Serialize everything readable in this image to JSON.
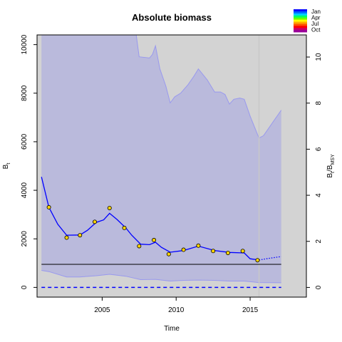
{
  "chart_data": {
    "type": "line",
    "title": "Absolute biomass",
    "xlabel": "Time",
    "ylabel_left": {
      "main": "B",
      "sub": "t"
    },
    "ylabel_right": {
      "main": "B",
      "sub": "t",
      "sep": "/B",
      "sub2": "MSY"
    },
    "xlim": [
      2000.6,
      2018.8
    ],
    "ylim_left": [
      -400,
      10400
    ],
    "ylim_right": [
      -0.42,
      10.96
    ],
    "x_ticks": [
      2005,
      2010,
      2015
    ],
    "y_ticks_left": [
      0,
      2000,
      4000,
      6000,
      8000,
      10000
    ],
    "y_ticks_right": [
      0,
      2,
      4,
      6,
      8,
      10
    ],
    "bmsy": 950,
    "vertical_line_x": 2015.6,
    "fit_end_x": 2015.6,
    "projection_end_x": 2017.1,
    "biomass_fit": [
      [
        2000.9,
        4550
      ],
      [
        2001.4,
        3300
      ],
      [
        2002.0,
        2600
      ],
      [
        2002.6,
        2150
      ],
      [
        2003.5,
        2160
      ],
      [
        2004.0,
        2350
      ],
      [
        2004.6,
        2680
      ],
      [
        2005.1,
        2780
      ],
      [
        2005.5,
        3050
      ],
      [
        2006.0,
        2800
      ],
      [
        2006.6,
        2450
      ],
      [
        2007.0,
        2150
      ],
      [
        2007.6,
        1780
      ],
      [
        2008.2,
        1760
      ],
      [
        2008.6,
        1860
      ],
      [
        2009.0,
        1650
      ],
      [
        2009.6,
        1450
      ],
      [
        2010.5,
        1520
      ],
      [
        2011.5,
        1700
      ],
      [
        2012.6,
        1520
      ],
      [
        2013.6,
        1440
      ],
      [
        2014.6,
        1420
      ],
      [
        2015.0,
        1180
      ],
      [
        2015.6,
        1130
      ]
    ],
    "biomass_projection": [
      [
        2015.6,
        1130
      ],
      [
        2016.3,
        1200
      ],
      [
        2017.1,
        1270
      ]
    ],
    "biomass_upper_ci": [
      [
        2000.9,
        10400
      ],
      [
        2007.3,
        10400
      ],
      [
        2007.5,
        9500
      ],
      [
        2008.2,
        9450
      ],
      [
        2008.4,
        9600
      ],
      [
        2008.6,
        9950
      ],
      [
        2008.9,
        9000
      ],
      [
        2009.3,
        8300
      ],
      [
        2009.6,
        7600
      ],
      [
        2009.9,
        7850
      ],
      [
        2010.3,
        8000
      ],
      [
        2010.8,
        8350
      ],
      [
        2011.2,
        8700
      ],
      [
        2011.5,
        9000
      ],
      [
        2012.1,
        8550
      ],
      [
        2012.6,
        8050
      ],
      [
        2013.0,
        8050
      ],
      [
        2013.3,
        7950
      ],
      [
        2013.6,
        7550
      ],
      [
        2013.9,
        7750
      ],
      [
        2014.3,
        7800
      ],
      [
        2014.6,
        7750
      ],
      [
        2015.0,
        7050
      ],
      [
        2015.6,
        6150
      ],
      [
        2015.9,
        6250
      ],
      [
        2017.1,
        7300
      ]
    ],
    "biomass_lower_ci": [
      [
        2000.9,
        700
      ],
      [
        2001.4,
        650
      ],
      [
        2002.6,
        430
      ],
      [
        2003.5,
        430
      ],
      [
        2004.6,
        480
      ],
      [
        2005.5,
        540
      ],
      [
        2006.6,
        460
      ],
      [
        2007.6,
        320
      ],
      [
        2008.6,
        330
      ],
      [
        2009.6,
        260
      ],
      [
        2010.5,
        290
      ],
      [
        2011.5,
        300
      ],
      [
        2012.6,
        290
      ],
      [
        2013.6,
        260
      ],
      [
        2014.6,
        260
      ],
      [
        2015.6,
        200
      ],
      [
        2017.1,
        190
      ]
    ],
    "observations": {
      "x": [
        2001.4,
        2002.6,
        2003.5,
        2004.5,
        2005.5,
        2006.5,
        2007.5,
        2008.5,
        2009.5,
        2010.5,
        2011.5,
        2012.5,
        2013.5,
        2014.5,
        2015.5
      ],
      "y": [
        3300,
        2050,
        2150,
        2700,
        3270,
        2450,
        1700,
        1950,
        1370,
        1550,
        1720,
        1500,
        1420,
        1500,
        1120
      ]
    },
    "lower_dashed_y": 0,
    "colors": {
      "plot_background": "#d3d3d3",
      "ci_fill": "#babadc",
      "ci_border": "#9999ee",
      "fit_line": "#0000ff",
      "bmsy_line": "#000000",
      "vline": "#c8c8c8",
      "point_fill": "#ffd400"
    },
    "legend": {
      "labels": [
        "Jan",
        "Apr",
        "Jul",
        "Oct"
      ],
      "gradient": [
        "#0000ff",
        "#0066ff",
        "#00ccff",
        "#00ff66",
        "#66ff00",
        "#ffff00",
        "#ffaa00",
        "#ff5500",
        "#ff0000",
        "#cc0066",
        "#990099"
      ]
    }
  }
}
